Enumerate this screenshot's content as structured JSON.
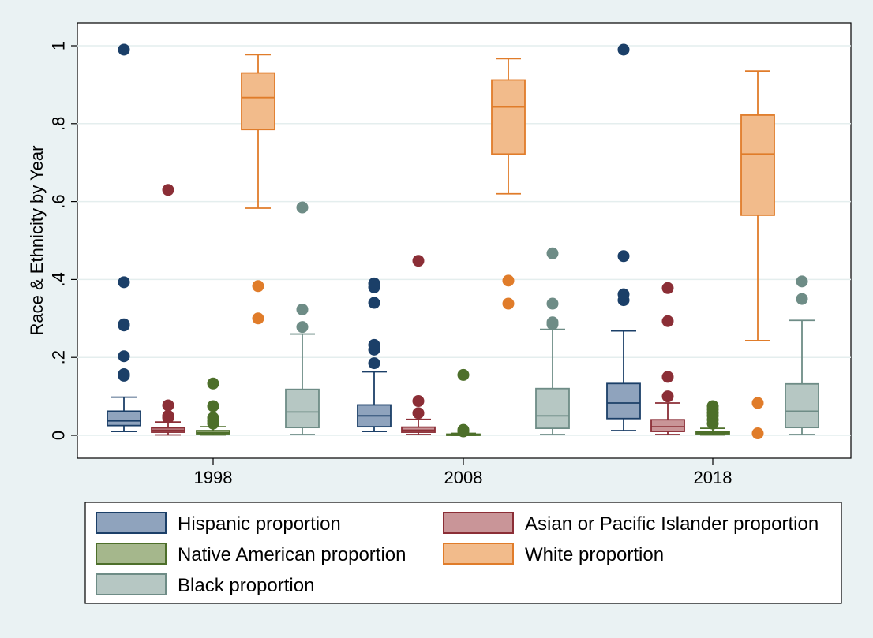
{
  "chart_data": {
    "type": "box",
    "title": "",
    "ylabel": "Race & Ethnicity by Year",
    "xlabel": "",
    "ylim": [
      -0.05,
      1.06
    ],
    "yticks": [
      0,
      0.2,
      0.4,
      0.6,
      0.8,
      1
    ],
    "ytick_labels": [
      "0",
      ".2",
      ".4",
      ".6",
      ".8",
      "1"
    ],
    "grid": true,
    "legend_position": "bottom",
    "categories": [
      "1998",
      "2008",
      "2018"
    ],
    "series": [
      {
        "name": "Hispanic proportion",
        "fill": "#8fa3bd",
        "stroke": "#1b3f68",
        "boxes": [
          {
            "min": 0.01,
            "q1": 0.025,
            "median": 0.037,
            "q3": 0.062,
            "max": 0.098,
            "outliers": [
              0.153,
              0.157,
              0.203,
              0.282,
              0.285,
              0.393,
              0.99
            ]
          },
          {
            "min": 0.01,
            "q1": 0.022,
            "median": 0.05,
            "q3": 0.078,
            "max": 0.163,
            "outliers": [
              0.185,
              0.22,
              0.232,
              0.34,
              0.38,
              0.39
            ]
          },
          {
            "min": 0.012,
            "q1": 0.043,
            "median": 0.083,
            "q3": 0.133,
            "max": 0.268,
            "outliers": [
              0.347,
              0.362,
              0.46,
              0.99
            ]
          }
        ]
      },
      {
        "name": "Asian or Pacific Islander proportion",
        "fill": "#c99598",
        "stroke": "#8b2e36",
        "boxes": [
          {
            "min": 0.001,
            "q1": 0.008,
            "median": 0.013,
            "q3": 0.019,
            "max": 0.034,
            "outliers": [
              0.045,
              0.05,
              0.077,
              0.63
            ]
          },
          {
            "min": 0.002,
            "q1": 0.008,
            "median": 0.013,
            "q3": 0.021,
            "max": 0.041,
            "outliers": [
              0.057,
              0.088,
              0.448
            ]
          },
          {
            "min": 0.002,
            "q1": 0.01,
            "median": 0.022,
            "q3": 0.04,
            "max": 0.083,
            "outliers": [
              0.1,
              0.15,
              0.293,
              0.378
            ]
          }
        ]
      },
      {
        "name": "Native American proportion",
        "fill": "#a5b78c",
        "stroke": "#4d6f2a",
        "boxes": [
          {
            "min": 0.001,
            "q1": 0.004,
            "median": 0.007,
            "q3": 0.012,
            "max": 0.022,
            "outliers": [
              0.03,
              0.037,
              0.045,
              0.075,
              0.133
            ]
          },
          {
            "min": 0.0,
            "q1": 0.001,
            "median": 0.002,
            "q3": 0.003,
            "max": 0.005,
            "outliers": [
              0.01,
              0.014,
              0.155
            ]
          },
          {
            "min": 0.001,
            "q1": 0.004,
            "median": 0.007,
            "q3": 0.01,
            "max": 0.018,
            "outliers": [
              0.03,
              0.04,
              0.05,
              0.058,
              0.067,
              0.075
            ]
          }
        ]
      },
      {
        "name": "White proportion",
        "fill": "#f2bb8b",
        "stroke": "#e07c2a",
        "boxes": [
          {
            "min": 0.583,
            "q1": 0.785,
            "median": 0.867,
            "q3": 0.93,
            "max": 0.977,
            "outliers": [
              0.3,
              0.383
            ]
          },
          {
            "min": 0.62,
            "q1": 0.722,
            "median": 0.843,
            "q3": 0.912,
            "max": 0.967,
            "outliers": [
              0.338,
              0.397
            ]
          },
          {
            "min": 0.243,
            "q1": 0.565,
            "median": 0.722,
            "q3": 0.822,
            "max": 0.935,
            "outliers": [
              0.005,
              0.083
            ]
          }
        ]
      },
      {
        "name": "Black proportion",
        "fill": "#b6c7c3",
        "stroke": "#6e8c86",
        "boxes": [
          {
            "min": 0.002,
            "q1": 0.02,
            "median": 0.06,
            "q3": 0.118,
            "max": 0.26,
            "outliers": [
              0.278,
              0.323,
              0.585
            ]
          },
          {
            "min": 0.002,
            "q1": 0.018,
            "median": 0.05,
            "q3": 0.12,
            "max": 0.272,
            "outliers": [
              0.285,
              0.29,
              0.338,
              0.467
            ]
          },
          {
            "min": 0.002,
            "q1": 0.02,
            "median": 0.062,
            "q3": 0.132,
            "max": 0.295,
            "outliers": [
              0.35,
              0.395
            ]
          }
        ]
      }
    ]
  }
}
